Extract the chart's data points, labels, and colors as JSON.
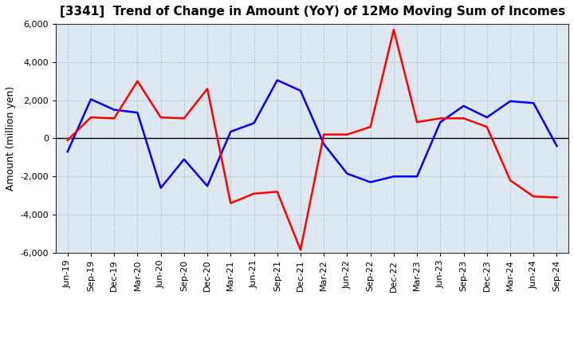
{
  "title": "[3341]  Trend of Change in Amount (YoY) of 12Mo Moving Sum of Incomes",
  "ylabel": "Amount (million yen)",
  "labels": [
    "Jun-19",
    "Sep-19",
    "Dec-19",
    "Mar-20",
    "Jun-20",
    "Sep-20",
    "Dec-20",
    "Mar-21",
    "Jun-21",
    "Sep-21",
    "Dec-21",
    "Mar-22",
    "Jun-22",
    "Sep-22",
    "Dec-22",
    "Mar-23",
    "Jun-23",
    "Sep-23",
    "Dec-23",
    "Mar-24",
    "Jun-24",
    "Sep-24"
  ],
  "ordinary_income": [
    -700,
    2050,
    1500,
    1350,
    -2600,
    -1100,
    -2500,
    350,
    800,
    3050,
    2500,
    -300,
    -1850,
    -2300,
    -2000,
    -2000,
    850,
    1700,
    1100,
    1950,
    1850,
    -400
  ],
  "net_income": [
    -100,
    1100,
    1050,
    3000,
    1100,
    1050,
    2600,
    -3400,
    -2900,
    -2800,
    -5850,
    200,
    200,
    600,
    5700,
    850,
    1050,
    1050,
    600,
    -2200,
    -3050,
    -3100
  ],
  "ordinary_income_color": "#0000ff",
  "net_income_color": "#ff0000",
  "ylim": [
    -6000,
    6000
  ],
  "yticks": [
    -6000,
    -4000,
    -2000,
    0,
    2000,
    4000,
    6000
  ],
  "plot_bg_color": "#dde8f0",
  "fig_bg_color": "#ffffff",
  "grid_color": "#aaaacc",
  "line_width": 1.8,
  "title_fontsize": 11,
  "ylabel_fontsize": 9,
  "tick_fontsize": 8,
  "legend_fontsize": 9
}
